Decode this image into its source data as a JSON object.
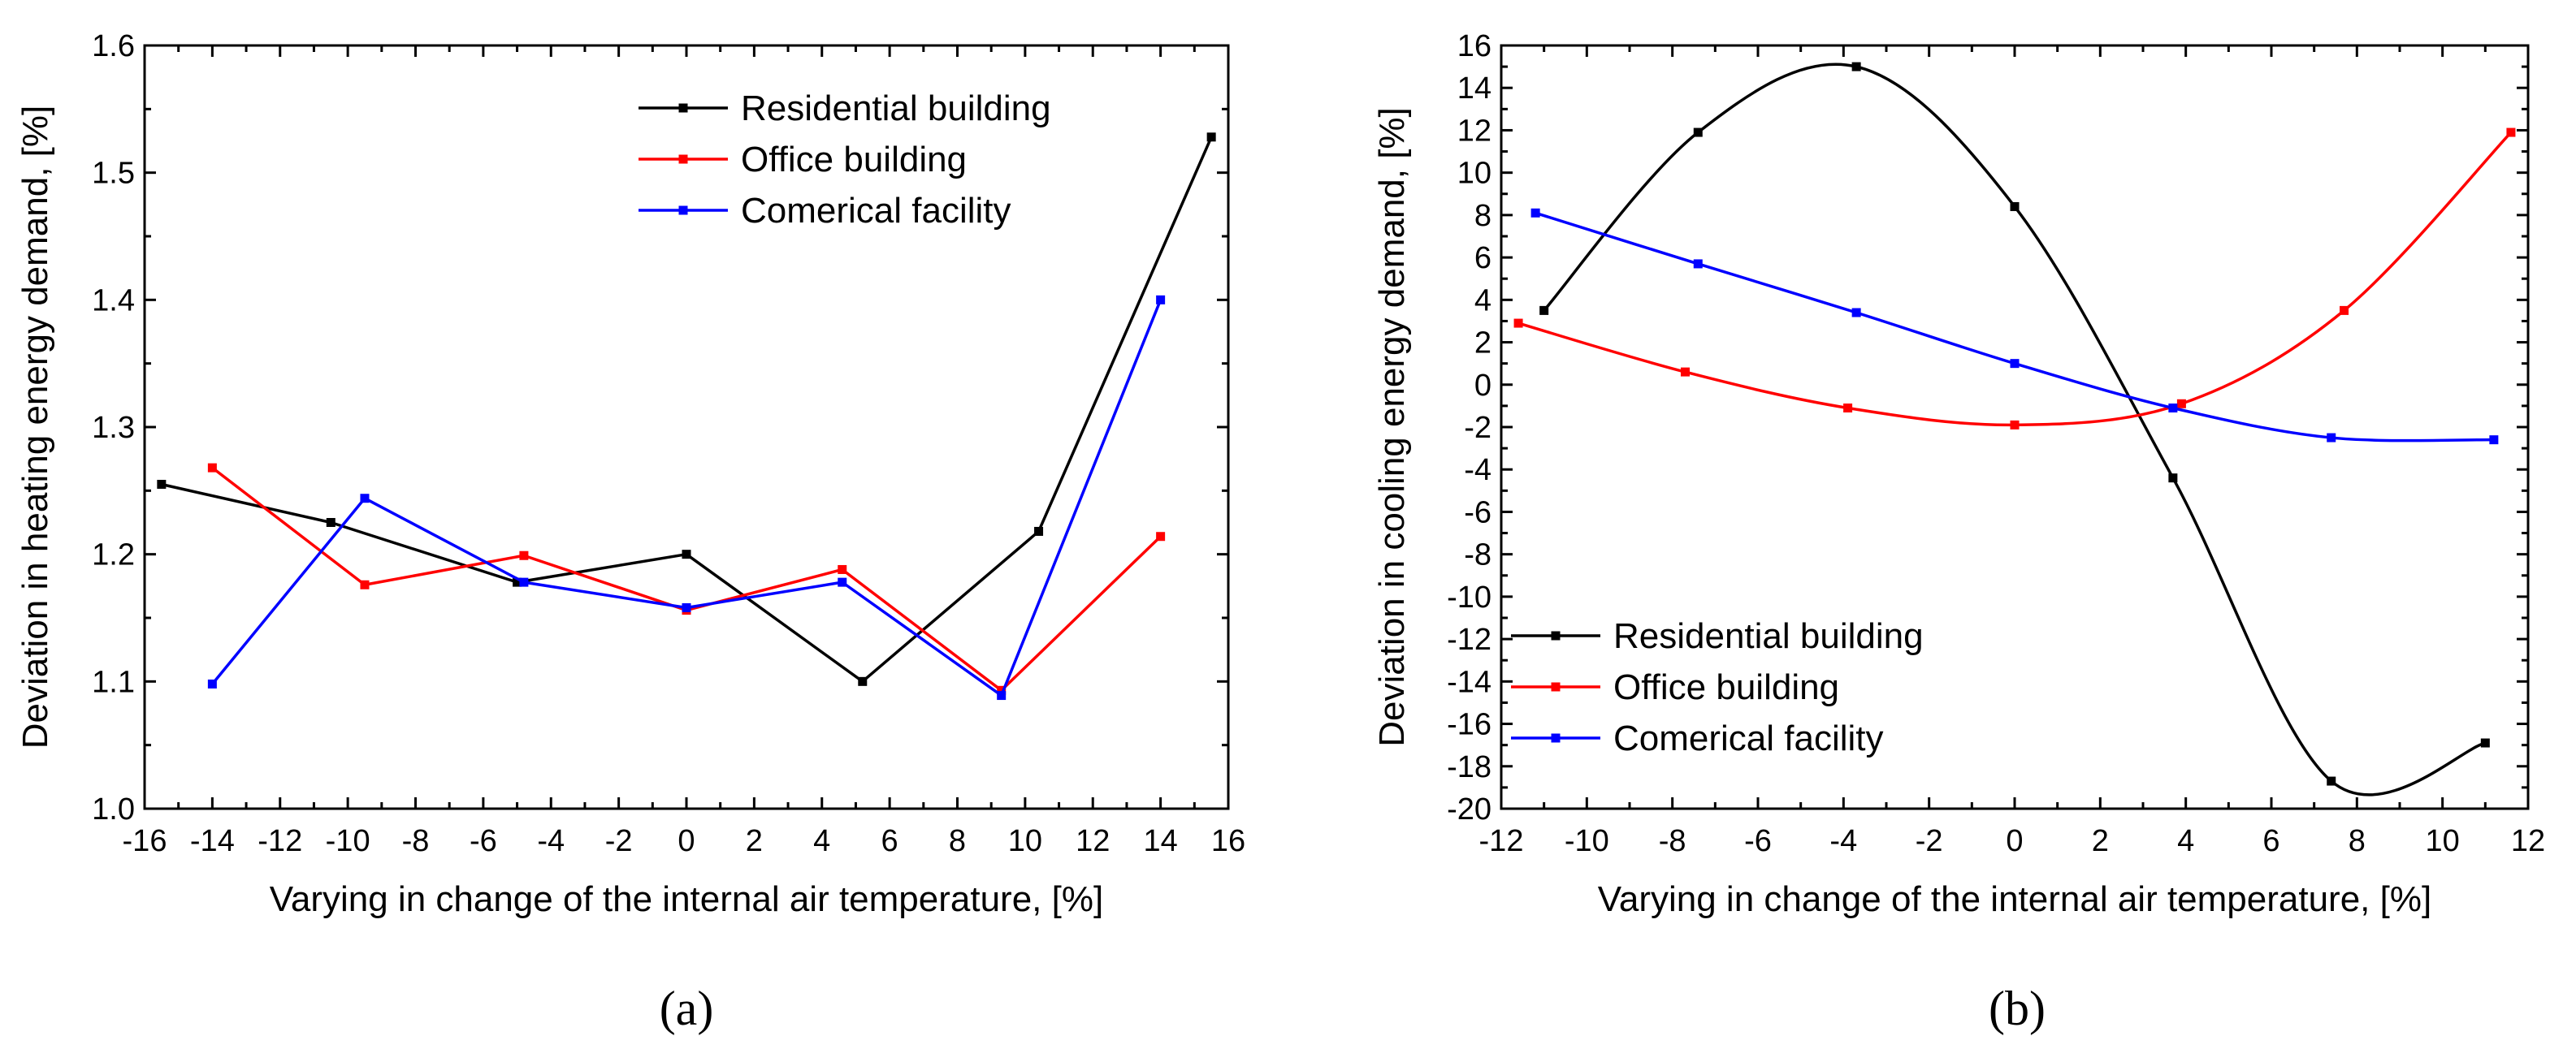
{
  "chart_data": [
    {
      "type": "line",
      "panel_label": "(a)",
      "xlabel": "Varying in change of the internal air temperature, [%]",
      "ylabel": "Deviation in heating energy demand, [%]",
      "xlim": [
        -16,
        16
      ],
      "ylim": [
        1.0,
        1.6
      ],
      "xticks": [
        -16,
        -14,
        -12,
        -10,
        -8,
        -6,
        -4,
        -2,
        0,
        2,
        4,
        6,
        8,
        10,
        12,
        14,
        16
      ],
      "yticks": [
        1.0,
        1.1,
        1.2,
        1.3,
        1.4,
        1.5,
        1.6
      ],
      "ytick_decimals": 1,
      "smooth": false,
      "legend_position": "top-right",
      "series": [
        {
          "name": "Residential building",
          "color": "#000000",
          "x": [
            -15.5,
            -10.5,
            -5.0,
            0.0,
            5.2,
            10.4,
            15.5
          ],
          "y": [
            1.255,
            1.225,
            1.178,
            1.2,
            1.1,
            1.218,
            1.528
          ]
        },
        {
          "name": "Office building",
          "color": "#ff0000",
          "x": [
            -14.0,
            -9.5,
            -4.8,
            0.0,
            4.6,
            9.3,
            14.0
          ],
          "y": [
            1.268,
            1.176,
            1.199,
            1.156,
            1.188,
            1.093,
            1.214
          ]
        },
        {
          "name": "Comerical facility",
          "color": "#0000ff",
          "x": [
            -14.0,
            -9.5,
            -4.8,
            0.0,
            4.6,
            9.3,
            14.0
          ],
          "y": [
            1.098,
            1.244,
            1.178,
            1.158,
            1.178,
            1.089,
            1.4
          ]
        }
      ]
    },
    {
      "type": "line",
      "panel_label": "(b)",
      "xlabel": "Varying in change of the internal air temperature, [%]",
      "ylabel": "Deviation in cooling energy demand, [%]",
      "xlim": [
        -12,
        12
      ],
      "ylim": [
        -20,
        16
      ],
      "xticks": [
        -12,
        -10,
        -8,
        -6,
        -4,
        -2,
        0,
        2,
        4,
        6,
        8,
        10,
        12
      ],
      "yticks": [
        -20,
        -18,
        -16,
        -14,
        -12,
        -10,
        -8,
        -6,
        -4,
        -2,
        0,
        2,
        4,
        6,
        8,
        10,
        12,
        14,
        16
      ],
      "ytick_decimals": 0,
      "smooth": true,
      "legend_position": "bottom-left",
      "series": [
        {
          "name": "Residential building",
          "color": "#000000",
          "x": [
            -11.0,
            -7.4,
            -3.7,
            0.0,
            3.7,
            7.4,
            11.0
          ],
          "y": [
            3.5,
            11.9,
            15.0,
            8.4,
            -4.4,
            -18.7,
            -16.9
          ]
        },
        {
          "name": "Office building",
          "color": "#ff0000",
          "x": [
            -11.6,
            -7.7,
            -3.9,
            0.0,
            3.9,
            7.7,
            11.6
          ],
          "y": [
            2.9,
            0.6,
            -1.1,
            -1.9,
            -0.9,
            3.5,
            11.9
          ]
        },
        {
          "name": "Comerical facility",
          "color": "#0000ff",
          "x": [
            -11.2,
            -7.4,
            -3.7,
            0.0,
            3.7,
            7.4,
            11.2
          ],
          "y": [
            8.1,
            5.7,
            3.4,
            1.0,
            -1.1,
            -2.5,
            -2.6
          ]
        }
      ]
    }
  ]
}
